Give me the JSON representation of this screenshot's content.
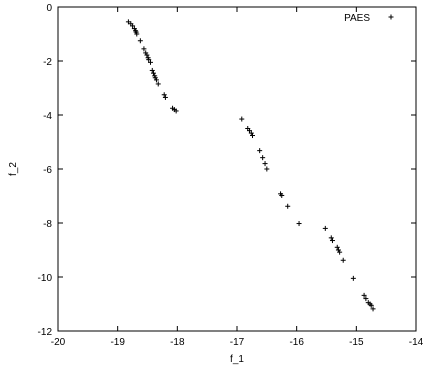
{
  "chart_data": {
    "type": "scatter",
    "title": "",
    "xlabel": "f_1",
    "ylabel": "f_2",
    "xlim": [
      -20,
      -14
    ],
    "ylim": [
      -12,
      0
    ],
    "xticks": [
      -20,
      -19,
      -18,
      -17,
      -16,
      -15,
      -14
    ],
    "yticks": [
      0,
      -2,
      -4,
      -6,
      -8,
      -10,
      -12
    ],
    "xtick_labels": [
      "-20",
      "-19",
      "-18",
      "-17",
      "-16",
      "-15",
      "-14"
    ],
    "ytick_labels": [
      "0",
      "-2",
      "-4",
      "-6",
      "-8",
      "-10",
      "-12"
    ],
    "grid": false,
    "legend_position": "top-right",
    "marker": "+",
    "colors": {
      "points": "#000000",
      "axes": "#000000",
      "background": "#ffffff"
    },
    "series": [
      {
        "name": "PAES",
        "points": [
          [
            -18.82,
            -0.55
          ],
          [
            -18.78,
            -0.62
          ],
          [
            -18.75,
            -0.7
          ],
          [
            -18.72,
            -0.8
          ],
          [
            -18.7,
            -0.88
          ],
          [
            -18.69,
            -0.93
          ],
          [
            -18.68,
            -1.0
          ],
          [
            -18.62,
            -1.25
          ],
          [
            -18.56,
            -1.55
          ],
          [
            -18.53,
            -1.7
          ],
          [
            -18.51,
            -1.78
          ],
          [
            -18.49,
            -1.88
          ],
          [
            -18.48,
            -1.95
          ],
          [
            -18.45,
            -2.05
          ],
          [
            -18.42,
            -2.35
          ],
          [
            -18.4,
            -2.45
          ],
          [
            -18.38,
            -2.55
          ],
          [
            -18.37,
            -2.62
          ],
          [
            -18.35,
            -2.7
          ],
          [
            -18.32,
            -2.85
          ],
          [
            -18.22,
            -3.25
          ],
          [
            -18.2,
            -3.35
          ],
          [
            -18.08,
            -3.75
          ],
          [
            -18.05,
            -3.8
          ],
          [
            -18.02,
            -3.85
          ],
          [
            -16.92,
            -4.15
          ],
          [
            -16.82,
            -4.5
          ],
          [
            -16.79,
            -4.58
          ],
          [
            -16.76,
            -4.67
          ],
          [
            -16.74,
            -4.76
          ],
          [
            -16.62,
            -5.32
          ],
          [
            -16.57,
            -5.58
          ],
          [
            -16.53,
            -5.8
          ],
          [
            -16.5,
            -6.0
          ],
          [
            -16.27,
            -6.92
          ],
          [
            -16.25,
            -6.98
          ],
          [
            -16.15,
            -7.38
          ],
          [
            -15.96,
            -8.02
          ],
          [
            -15.52,
            -8.2
          ],
          [
            -15.42,
            -8.55
          ],
          [
            -15.4,
            -8.65
          ],
          [
            -15.32,
            -8.9
          ],
          [
            -15.3,
            -9.0
          ],
          [
            -15.28,
            -9.08
          ],
          [
            -15.22,
            -9.38
          ],
          [
            -15.05,
            -10.05
          ],
          [
            -14.87,
            -10.68
          ],
          [
            -14.84,
            -10.8
          ],
          [
            -14.8,
            -10.95
          ],
          [
            -14.77,
            -11.0
          ],
          [
            -14.75,
            -11.05
          ],
          [
            -14.72,
            -11.18
          ]
        ]
      }
    ]
  }
}
